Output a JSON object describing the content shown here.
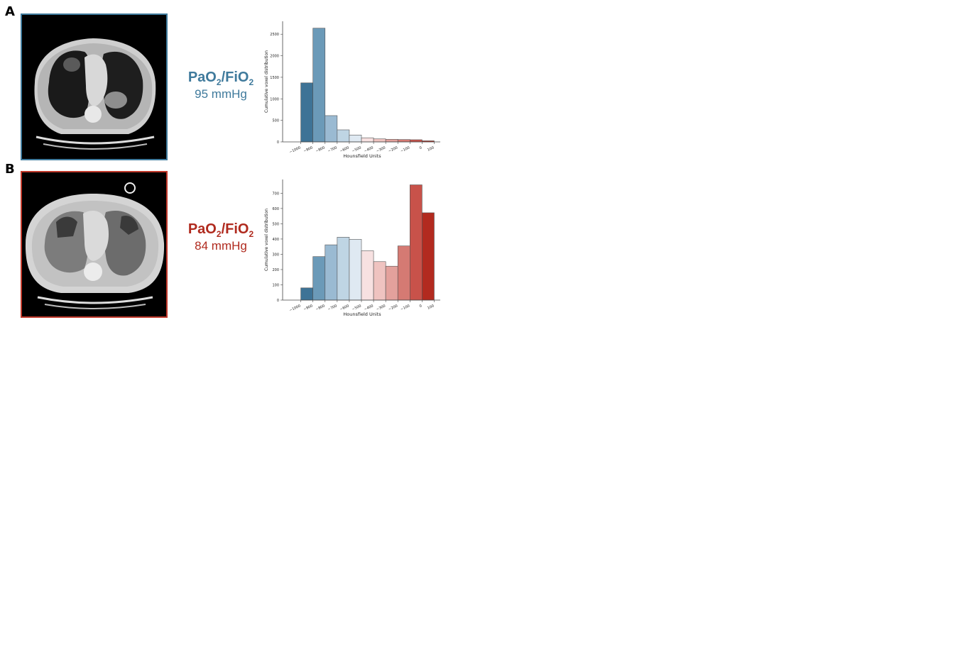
{
  "panels": [
    {
      "letter": "A",
      "ratio": {
        "pao2_prefix": "PaO",
        "pao2_sub": "2",
        "slash": "/FiO",
        "fio2_sub": "2",
        "value": "95 mmHg"
      },
      "colors": {
        "frame": "#3f7a9c",
        "text": "#3f7a9c"
      },
      "ct_image_icon": "ct-scan-chest-axial"
    },
    {
      "letter": "B",
      "ratio": {
        "pao2_prefix": "PaO",
        "pao2_sub": "2",
        "slash": "/FiO",
        "fio2_sub": "2",
        "value": "84 mmHg"
      },
      "colors": {
        "frame": "#c0392b",
        "text": "#b02a1e"
      },
      "ct_image_icon": "ct-scan-chest-axial"
    }
  ],
  "chart_data": [
    {
      "type": "bar",
      "xlabel": "Hounsfield Units",
      "ylabel": "Cumulative voxel distribution",
      "x_ticks": [
        "−1000",
        "−900",
        "−800",
        "−700",
        "−600",
        "−500",
        "−400",
        "−300",
        "−200",
        "−100",
        "0",
        "100"
      ],
      "y_ticks": [
        "0",
        "500",
        "1000",
        "1500",
        "2000",
        "2500"
      ],
      "ylim": [
        0,
        2800
      ],
      "bins": [
        -1000,
        -900,
        -800,
        -700,
        -600,
        -500,
        -400,
        -300,
        -200,
        -100,
        0
      ],
      "values": [
        1370,
        2640,
        610,
        280,
        160,
        95,
        70,
        60,
        55,
        50,
        25
      ],
      "colors": [
        "#3e7396",
        "#6b9ab8",
        "#9abad2",
        "#bfd5e4",
        "#dfe9f2",
        "#f7e1e1",
        "#efc3c0",
        "#e3a19c",
        "#d57a73",
        "#c8524a",
        "#b22a1f"
      ],
      "grid": false
    },
    {
      "type": "bar",
      "xlabel": "Hounsfield Units",
      "ylabel": "Cumulative voxel distribution",
      "x_ticks": [
        "−1000",
        "−900",
        "−800",
        "−700",
        "−600",
        "−500",
        "−400",
        "−300",
        "−200",
        "−100",
        "0",
        "100"
      ],
      "y_ticks": [
        "0",
        "100",
        "200",
        "300",
        "400",
        "500",
        "600",
        "700"
      ],
      "ylim": [
        0,
        790
      ],
      "bins": [
        -1000,
        -900,
        -800,
        -700,
        -600,
        -500,
        -400,
        -300,
        -200,
        -100,
        0
      ],
      "values": [
        80,
        285,
        362,
        412,
        398,
        323,
        252,
        222,
        355,
        755,
        572
      ],
      "colors": [
        "#3e7396",
        "#6b9ab8",
        "#9abad2",
        "#bfd5e4",
        "#dfe9f2",
        "#f7e1e1",
        "#efc3c0",
        "#e3a19c",
        "#d57a73",
        "#c8524a",
        "#b22a1f"
      ],
      "grid": false
    }
  ]
}
